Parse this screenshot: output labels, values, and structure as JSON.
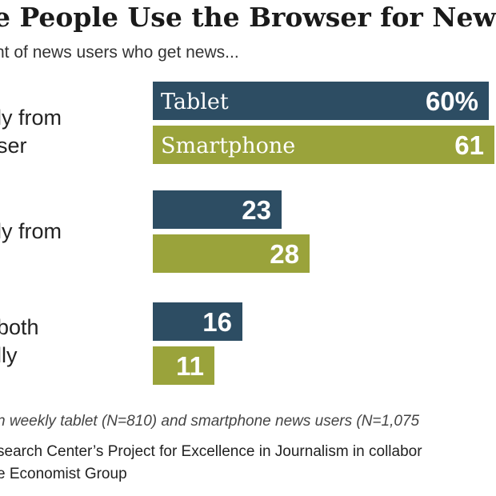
{
  "colors": {
    "tablet": "#2d4d63",
    "smartphone": "#9aa33b",
    "text_on_bar": "#ffffff"
  },
  "title": "e People Use the Browser for News",
  "subtitle": "nt of news users who get news...",
  "categories_lines": [
    [
      "ly from",
      "ser"
    ],
    [
      "ly  from"
    ],
    [
      "both",
      "lly"
    ]
  ],
  "chart_data": {
    "type": "bar",
    "orientation": "horizontal",
    "title": "e People Use the Browser for News",
    "subtitle": "nt of news users who get news...",
    "categories": [
      "ly from ser",
      "ly from",
      "both lly"
    ],
    "series": [
      {
        "name": "Tablet",
        "values": [
          60,
          23,
          16
        ],
        "labels": [
          "60%",
          "23",
          "16"
        ],
        "color": "#2d4d63"
      },
      {
        "name": "Smartphone",
        "values": [
          61,
          28,
          11
        ],
        "labels": [
          "61",
          "28",
          "11"
        ],
        "color": "#9aa33b"
      }
    ],
    "series_name_in_first_bar": true,
    "xlim": [
      0,
      100
    ],
    "xlabel": "",
    "ylabel": "",
    "grid": false
  },
  "note": "n weekly tablet (N=810) and smartphone news users (N=1,075",
  "source_line1": "search Center’s Project for Excellence in Journalism in collabor",
  "source_line2": "e Economist Group"
}
